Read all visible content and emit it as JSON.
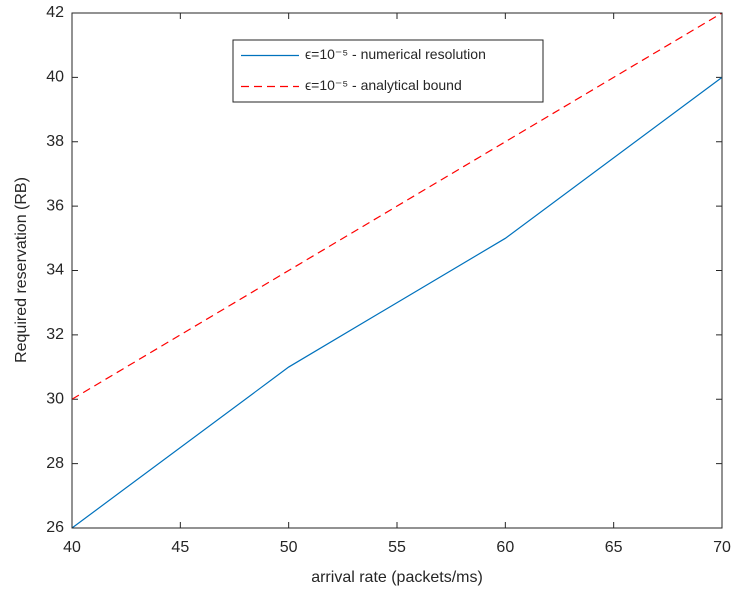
{
  "chart_data": {
    "type": "line",
    "x": [
      40,
      50,
      60,
      70
    ],
    "series": [
      {
        "name": "ϵ=10⁻⁵ - numerical resolution",
        "color": "#0072bd",
        "linestyle": "-",
        "values": [
          26,
          31,
          35,
          40
        ]
      },
      {
        "name": "ϵ=10⁻⁵ - analytical bound",
        "color": "#ff0000",
        "linestyle": "--",
        "values": [
          30,
          34,
          38,
          42
        ]
      }
    ],
    "xlabel": "arrival rate (packets/ms)",
    "ylabel": "Required reservation (RB)",
    "xlim": [
      40,
      70
    ],
    "xticks": [
      40,
      45,
      50,
      55,
      60,
      65,
      70
    ],
    "ylim": [
      26,
      42
    ],
    "yticks": [
      26,
      28,
      30,
      32,
      34,
      36,
      38,
      40,
      42
    ],
    "legend": "top"
  }
}
